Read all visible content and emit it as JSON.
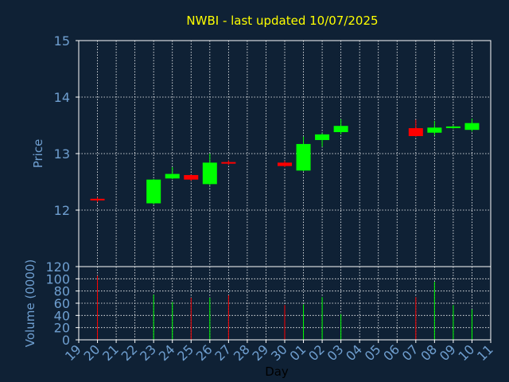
{
  "colors": {
    "background": "#0f2135",
    "title": "#ffff00",
    "axis_text": "#6f9fd0",
    "xlabel_text": "#000000",
    "frame": "#ffffff",
    "grid": "#ffffff",
    "up": "#00ff00",
    "down": "#ff0000"
  },
  "chart_data": {
    "type": "candlestick",
    "title": "NWBI - last updated 10/07/2025",
    "xlabel": "Day",
    "x_ticks": [
      "19",
      "20",
      "21",
      "22",
      "23",
      "24",
      "25",
      "26",
      "27",
      "28",
      "29",
      "30",
      "01",
      "02",
      "03",
      "04",
      "05",
      "06",
      "07",
      "08",
      "09",
      "10",
      "11"
    ],
    "price_panel": {
      "ylabel": "Price",
      "ylim": [
        11.0,
        15.0
      ],
      "yticks": [
        "12",
        "13",
        "14",
        "15"
      ],
      "grid": true
    },
    "volume_panel": {
      "ylabel": "Volume (0000)",
      "ylim": [
        0,
        120
      ],
      "yticks": [
        "0",
        "20",
        "40",
        "60",
        "80",
        "100",
        "120"
      ],
      "grid": true
    },
    "candles": [
      {
        "day": "20",
        "open": 12.2,
        "high": 12.23,
        "low": 12.14,
        "close": 12.18,
        "volume": 105
      },
      {
        "day": "23",
        "open": 12.12,
        "high": 12.55,
        "low": 12.1,
        "close": 12.54,
        "volume": 74
      },
      {
        "day": "24",
        "open": 12.56,
        "high": 12.76,
        "low": 12.55,
        "close": 12.64,
        "volume": 62
      },
      {
        "day": "25",
        "open": 12.62,
        "high": 12.63,
        "low": 12.52,
        "close": 12.54,
        "volume": 69
      },
      {
        "day": "26",
        "open": 12.46,
        "high": 13.0,
        "low": 12.44,
        "close": 12.84,
        "volume": 69
      },
      {
        "day": "27",
        "open": 12.85,
        "high": 12.88,
        "low": 12.8,
        "close": 12.84,
        "volume": 73
      },
      {
        "day": "30",
        "open": 12.84,
        "high": 12.87,
        "low": 12.76,
        "close": 12.78,
        "volume": 57
      },
      {
        "day": "01",
        "open": 12.7,
        "high": 13.3,
        "low": 12.69,
        "close": 13.17,
        "volume": 58
      },
      {
        "day": "02",
        "open": 13.24,
        "high": 13.36,
        "low": 13.12,
        "close": 13.34,
        "volume": 70
      },
      {
        "day": "03",
        "open": 13.38,
        "high": 13.61,
        "low": 13.34,
        "close": 13.49,
        "volume": 42
      },
      {
        "day": "07",
        "open": 13.45,
        "high": 13.6,
        "low": 13.3,
        "close": 13.31,
        "volume": 70
      },
      {
        "day": "08",
        "open": 13.37,
        "high": 13.58,
        "low": 13.32,
        "close": 13.46,
        "volume": 95
      },
      {
        "day": "09",
        "open": 13.46,
        "high": 13.5,
        "low": 13.44,
        "close": 13.48,
        "volume": 57
      },
      {
        "day": "10",
        "open": 13.42,
        "high": 13.62,
        "low": 13.39,
        "close": 13.54,
        "volume": 50
      }
    ]
  }
}
